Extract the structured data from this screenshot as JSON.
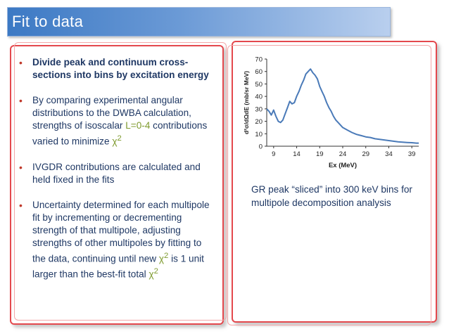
{
  "slide": {
    "title": "Fit to data",
    "colors": {
      "title_bar": "#3c79c4",
      "frame_border": "#e4484d",
      "text": "#1f3864",
      "bullet": "#c0392b",
      "highlight": "#7f9b2f",
      "line": "#4a7ab8"
    }
  },
  "bullets": [
    {
      "text": "Divide peak and continuum cross-sections into bins by excitation energy"
    },
    {
      "pre": "By comparing experimental angular distributions to the DWBA calculation, strengths of isoscalar ",
      "highlight": "L=0-4",
      "post": " contributions varied to minimize ",
      "chi": "χ",
      "sup": "2"
    },
    {
      "text": "IVGDR contributions are calculated and held fixed in the fits"
    },
    {
      "pre": "Uncertainty determined for each multipole fit by incrementing or decrementing strength of that multipole, adjusting strengths of other multipoles by fitting to the data, continuing until new ",
      "chi": "χ",
      "sup": "2",
      "mid": " is 1 unit larger than the best-fit total ",
      "chi2": "χ",
      "sup2": "2"
    }
  ],
  "caption": "GR peak “sliced” into 300 keV bins for multipole decomposition analysis",
  "chart_data": {
    "type": "line",
    "xlabel": "Ex (MeV)",
    "ylabel": "d²σ/dΩdE (mb/sr MeV)",
    "xlim": [
      7.5,
      40.5
    ],
    "ylim": [
      0,
      70
    ],
    "x_ticks": [
      9,
      14,
      19,
      24,
      29,
      34,
      39
    ],
    "y_ticks": [
      0,
      10,
      20,
      30,
      40,
      50,
      60,
      70
    ],
    "grid": false,
    "legend": "none",
    "series": [
      {
        "x": [
          7.5,
          8.0,
          8.5,
          9.0,
          9.5,
          10.0,
          10.5,
          11.0,
          11.5,
          12.0,
          12.5,
          13.0,
          13.5,
          14.0,
          14.5,
          15.0,
          15.5,
          16.0,
          16.5,
          17.0,
          17.5,
          18.0,
          18.5,
          19.0,
          19.5,
          20.0,
          20.5,
          21.0,
          21.5,
          22.0,
          22.5,
          23.0,
          24.0,
          25.0,
          26.0,
          27.0,
          28.0,
          29.0,
          30.0,
          31.0,
          32.0,
          33.0,
          34.0,
          35.0,
          36.0,
          37.0,
          38.0,
          39.0,
          40.0,
          40.5
        ],
        "y": [
          30,
          28,
          25,
          29,
          24,
          20,
          19,
          21,
          26,
          31,
          36,
          34,
          35,
          40,
          44,
          49,
          53,
          58,
          60,
          62,
          59,
          57,
          54,
          48,
          44,
          40,
          35,
          31,
          28,
          24,
          21,
          19,
          15,
          13,
          11,
          9.5,
          8.5,
          7.5,
          7,
          6,
          5.5,
          5,
          4.5,
          4,
          3.5,
          3.2,
          3,
          2.8,
          2.5,
          2.5
        ]
      }
    ]
  }
}
